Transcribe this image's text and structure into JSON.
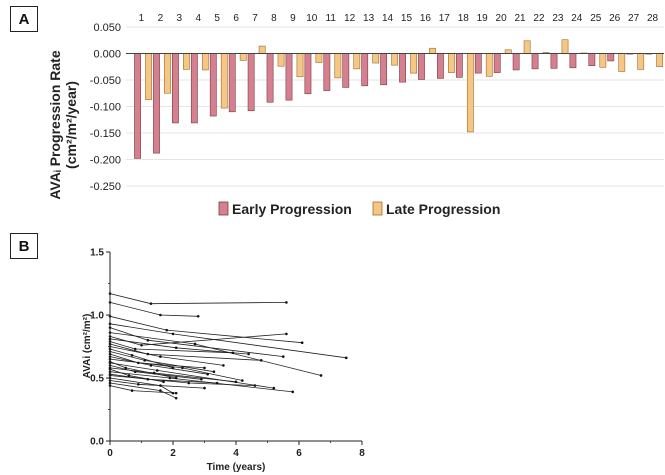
{
  "panels": {
    "a_label": "A",
    "b_label": "B"
  },
  "chart_data": [
    {
      "type": "bar",
      "panel": "A",
      "categories": [
        "1",
        "2",
        "3",
        "4",
        "5",
        "6",
        "7",
        "8",
        "9",
        "10",
        "11",
        "12",
        "13",
        "14",
        "15",
        "16",
        "17",
        "18",
        "19",
        "20",
        "21",
        "22",
        "23",
        "24",
        "25",
        "26",
        "27",
        "28"
      ],
      "series": [
        {
          "name": "Early Progression",
          "color": "#d4808e",
          "values": [
            -0.198,
            -0.188,
            -0.131,
            -0.131,
            -0.118,
            -0.11,
            -0.108,
            -0.092,
            -0.088,
            -0.076,
            -0.07,
            -0.064,
            -0.061,
            -0.059,
            -0.054,
            -0.049,
            -0.047,
            -0.045,
            -0.037,
            -0.036,
            -0.031,
            -0.029,
            -0.028,
            -0.027,
            -0.023,
            -0.014,
            -0.001,
            -0.001
          ]
        },
        {
          "name": "Late Progression",
          "color": "#f5c684",
          "values": [
            -0.087,
            -0.075,
            -0.03,
            -0.031,
            -0.103,
            -0.013,
            0.014,
            -0.024,
            -0.044,
            -0.017,
            -0.046,
            -0.029,
            -0.018,
            -0.022,
            -0.037,
            0.01,
            -0.036,
            -0.148,
            -0.043,
            0.007,
            0.024,
            0.002,
            0.026,
            0.001,
            -0.026,
            -0.034,
            -0.03,
            -0.025
          ]
        }
      ],
      "ylabel_line1": "AVAᵢ Progression Rate",
      "ylabel_line2": "(cm²/m²/year)",
      "ylim": [
        -0.25,
        0.05
      ],
      "yticks": [
        "0.050",
        "0.000",
        "-0.050",
        "-0.100",
        "-0.150",
        "-0.200",
        "-0.250"
      ],
      "legend": "bottom"
    },
    {
      "type": "line",
      "panel": "B",
      "xlabel": "Time (years)",
      "ylabel": "AVAi (cm²/m²)",
      "xlim": [
        0,
        8
      ],
      "ylim": [
        0,
        1.5
      ],
      "xticks": [
        "0",
        "2",
        "4",
        "6",
        "8"
      ],
      "yticks": [
        "0.0",
        "0.5",
        "1.0",
        "1.5"
      ],
      "series": [
        {
          "points": [
            [
              0,
              1.17
            ],
            [
              1.3,
              1.09
            ],
            [
              5.6,
              1.1
            ]
          ]
        },
        {
          "points": [
            [
              0,
              1.1
            ],
            [
              1.6,
              1.0
            ],
            [
              2.8,
              0.99
            ]
          ]
        },
        {
          "points": [
            [
              0,
              0.99
            ],
            [
              1.8,
              0.88
            ],
            [
              6.1,
              0.78
            ]
          ]
        },
        {
          "points": [
            [
              0,
              0.93
            ],
            [
              2.0,
              0.85
            ],
            [
              7.5,
              0.66
            ]
          ]
        },
        {
          "points": [
            [
              0,
              0.9
            ],
            [
              1.2,
              0.8
            ],
            [
              5.5,
              0.67
            ]
          ]
        },
        {
          "points": [
            [
              0,
              0.86
            ],
            [
              2.7,
              0.77
            ],
            [
              6.7,
              0.52
            ]
          ]
        },
        {
          "points": [
            [
              0,
              0.83
            ],
            [
              1.0,
              0.76
            ],
            [
              5.6,
              0.85
            ]
          ]
        },
        {
          "points": [
            [
              0,
              0.81
            ],
            [
              2.1,
              0.74
            ],
            [
              4.4,
              0.69
            ]
          ]
        },
        {
          "points": [
            [
              0,
              0.79
            ],
            [
              0.8,
              0.73
            ],
            [
              3.9,
              0.7
            ]
          ]
        },
        {
          "points": [
            [
              0,
              0.77
            ],
            [
              1.2,
              0.69
            ],
            [
              4.8,
              0.64
            ]
          ]
        },
        {
          "points": [
            [
              0,
              0.75
            ],
            [
              1.6,
              0.67
            ],
            [
              3.6,
              0.6
            ]
          ]
        },
        {
          "points": [
            [
              0,
              0.73
            ],
            [
              0.7,
              0.68
            ],
            [
              2.0,
              0.58
            ]
          ]
        },
        {
          "points": [
            [
              0,
              0.71
            ],
            [
              1.1,
              0.64
            ],
            [
              3.3,
              0.55
            ]
          ]
        },
        {
          "points": [
            [
              0,
              0.69
            ],
            [
              0.9,
              0.62
            ],
            [
              3.0,
              0.58
            ]
          ]
        },
        {
          "points": [
            [
              0,
              0.67
            ],
            [
              1.3,
              0.6
            ],
            [
              3.1,
              0.53
            ]
          ]
        },
        {
          "points": [
            [
              0,
              0.65
            ],
            [
              2.3,
              0.58
            ],
            [
              4.2,
              0.48
            ]
          ]
        },
        {
          "points": [
            [
              0,
              0.63
            ],
            [
              0.5,
              0.58
            ],
            [
              2.1,
              0.5
            ]
          ]
        },
        {
          "points": [
            [
              0,
              0.62
            ],
            [
              1.5,
              0.56
            ],
            [
              5.2,
              0.42
            ]
          ]
        },
        {
          "points": [
            [
              0,
              0.6
            ],
            [
              0.8,
              0.55
            ],
            [
              2.9,
              0.49
            ]
          ]
        },
        {
          "points": [
            [
              0,
              0.58
            ],
            [
              1.4,
              0.54
            ],
            [
              4.0,
              0.47
            ]
          ]
        },
        {
          "points": [
            [
              0,
              0.57
            ],
            [
              0.6,
              0.52
            ],
            [
              1.7,
              0.47
            ]
          ]
        },
        {
          "points": [
            [
              0,
              0.55
            ],
            [
              1.9,
              0.5
            ],
            [
              5.8,
              0.39
            ]
          ]
        },
        {
          "points": [
            [
              0,
              0.53
            ],
            [
              1.2,
              0.49
            ],
            [
              3.4,
              0.46
            ]
          ]
        },
        {
          "points": [
            [
              0,
              0.52
            ],
            [
              2.5,
              0.46
            ],
            [
              4.6,
              0.44
            ]
          ]
        },
        {
          "points": [
            [
              0,
              0.5
            ],
            [
              1.6,
              0.44
            ],
            [
              2.0,
              0.38
            ]
          ]
        },
        {
          "points": [
            [
              0,
              0.48
            ],
            [
              0.9,
              0.45
            ],
            [
              3.0,
              0.42
            ]
          ]
        },
        {
          "points": [
            [
              0,
              0.46
            ],
            [
              1.6,
              0.4
            ],
            [
              2.1,
              0.34
            ]
          ]
        },
        {
          "points": [
            [
              0,
              0.44
            ],
            [
              0.7,
              0.4
            ],
            [
              2.1,
              0.38
            ]
          ]
        }
      ]
    }
  ]
}
